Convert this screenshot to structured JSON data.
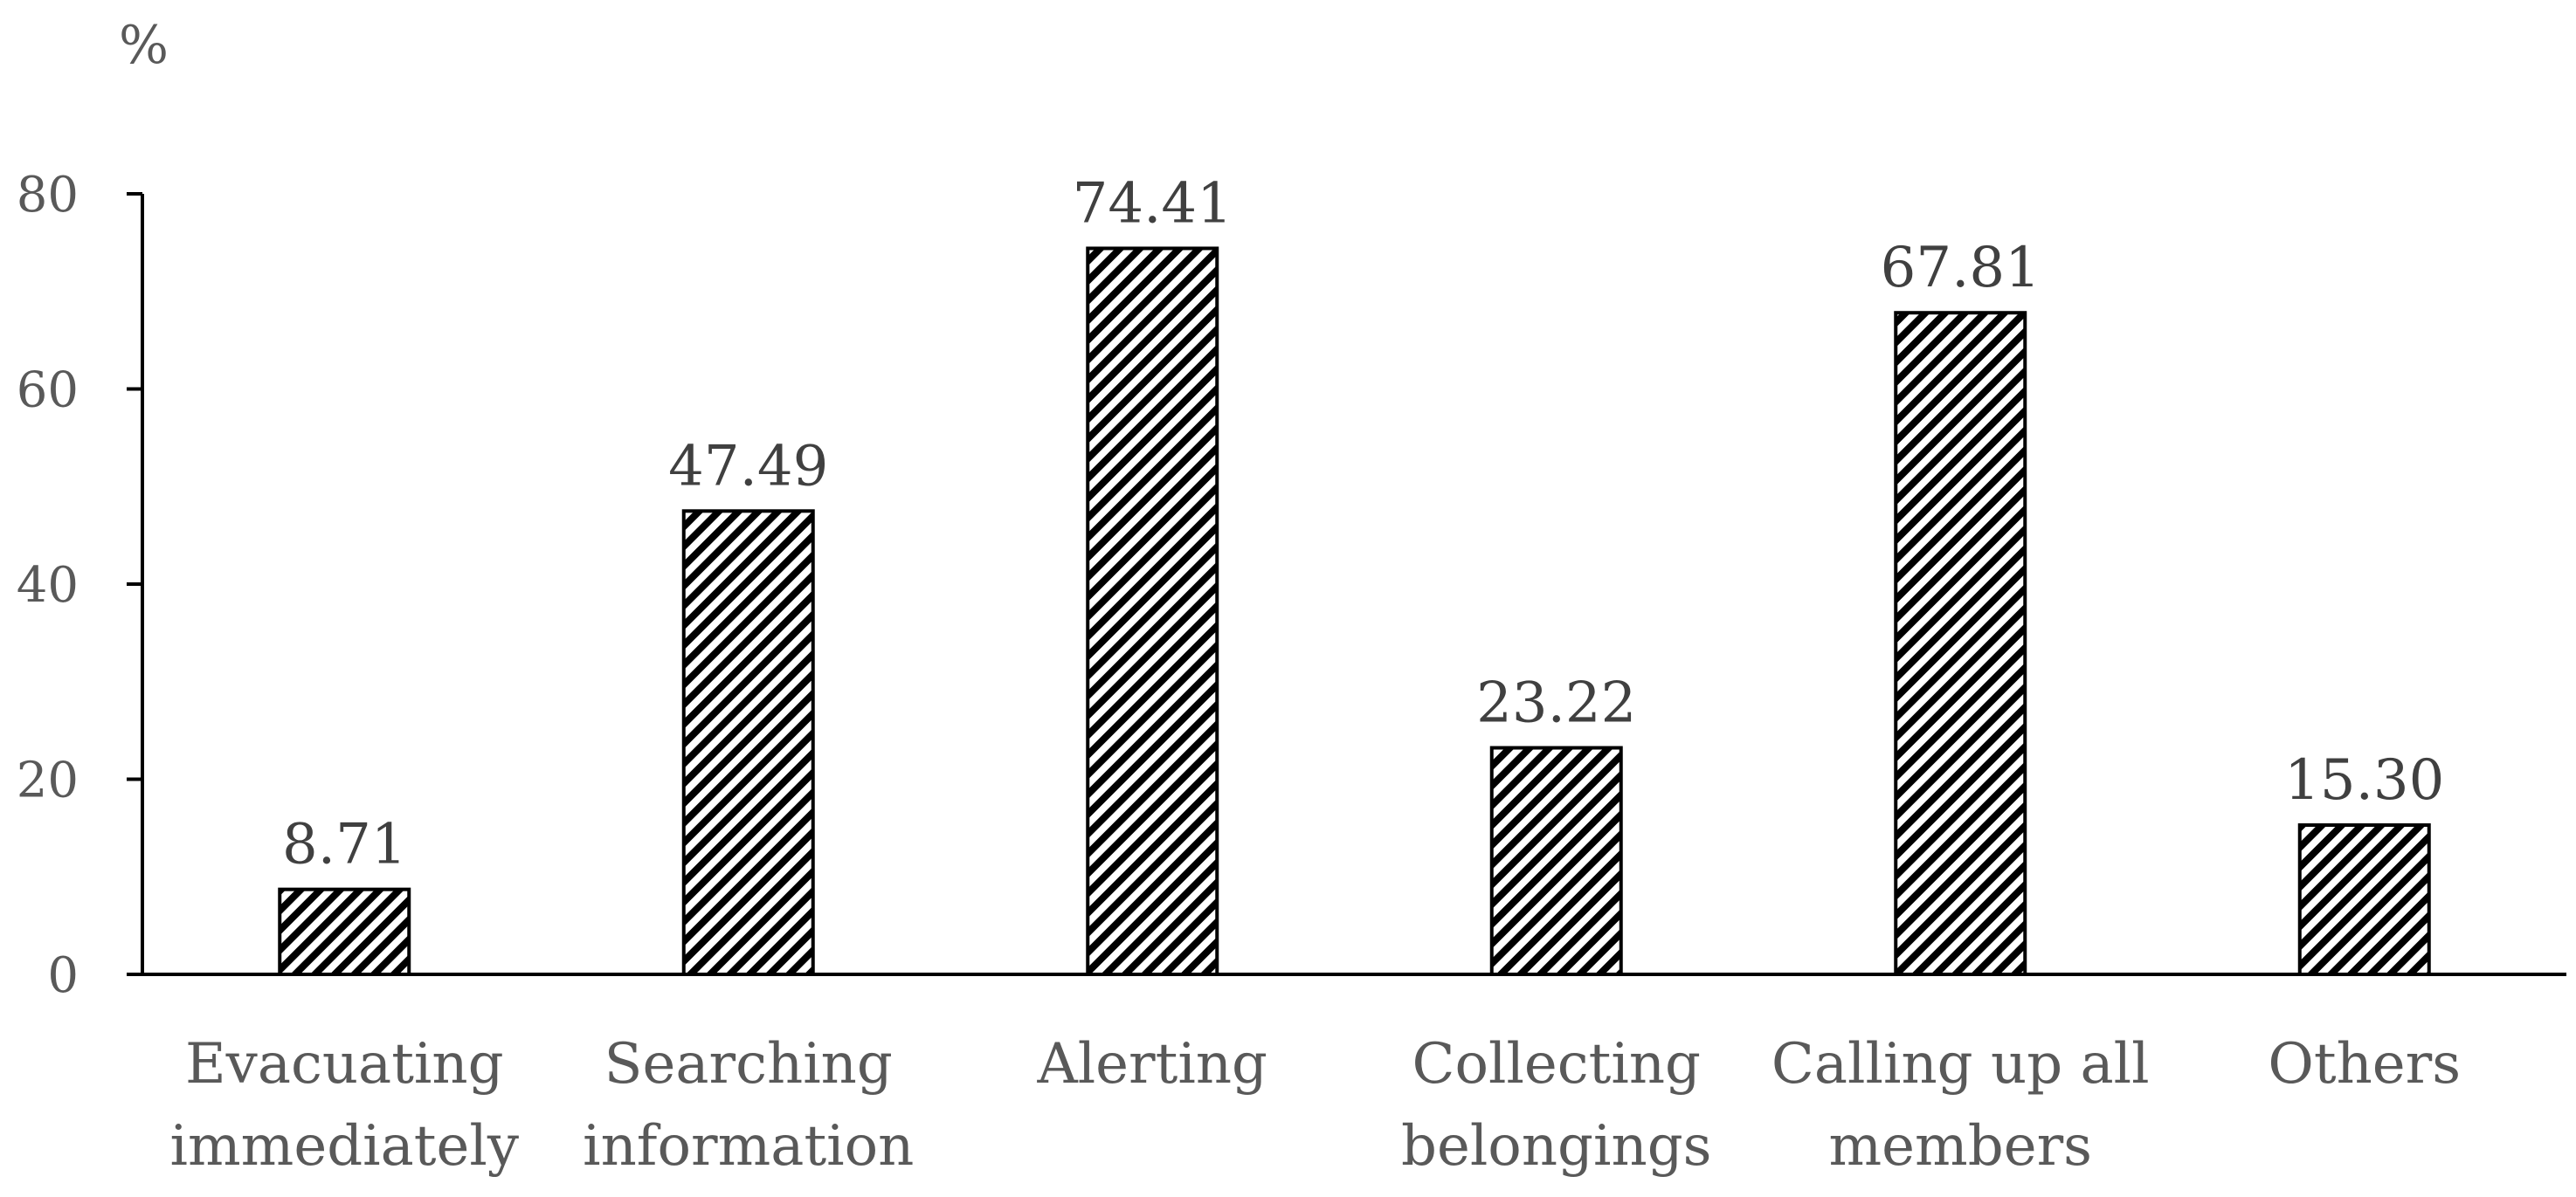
{
  "chart_data": {
    "type": "bar",
    "categories": [
      [
        "Evacuating",
        "immediately"
      ],
      [
        "Searching",
        "information"
      ],
      [
        "Alerting"
      ],
      [
        "Collecting",
        "belongings"
      ],
      [
        "Calling up all",
        "members"
      ],
      [
        "Others"
      ]
    ],
    "values": [
      8.71,
      47.49,
      74.41,
      23.22,
      67.81,
      15.3
    ],
    "value_labels": [
      "8.71",
      "47.49",
      "74.41",
      "23.22",
      "67.81",
      "15.30"
    ],
    "ylabel": "%",
    "ylim": [
      0,
      80
    ],
    "yticks": [
      0,
      20,
      40,
      60,
      80
    ],
    "grid": false,
    "legend": "none",
    "bar_fill": "diagonal-hatch",
    "colors": {
      "bar_stroke": "#000000",
      "hatch": "#000000",
      "axis": "#000000",
      "text": "#595959"
    }
  }
}
